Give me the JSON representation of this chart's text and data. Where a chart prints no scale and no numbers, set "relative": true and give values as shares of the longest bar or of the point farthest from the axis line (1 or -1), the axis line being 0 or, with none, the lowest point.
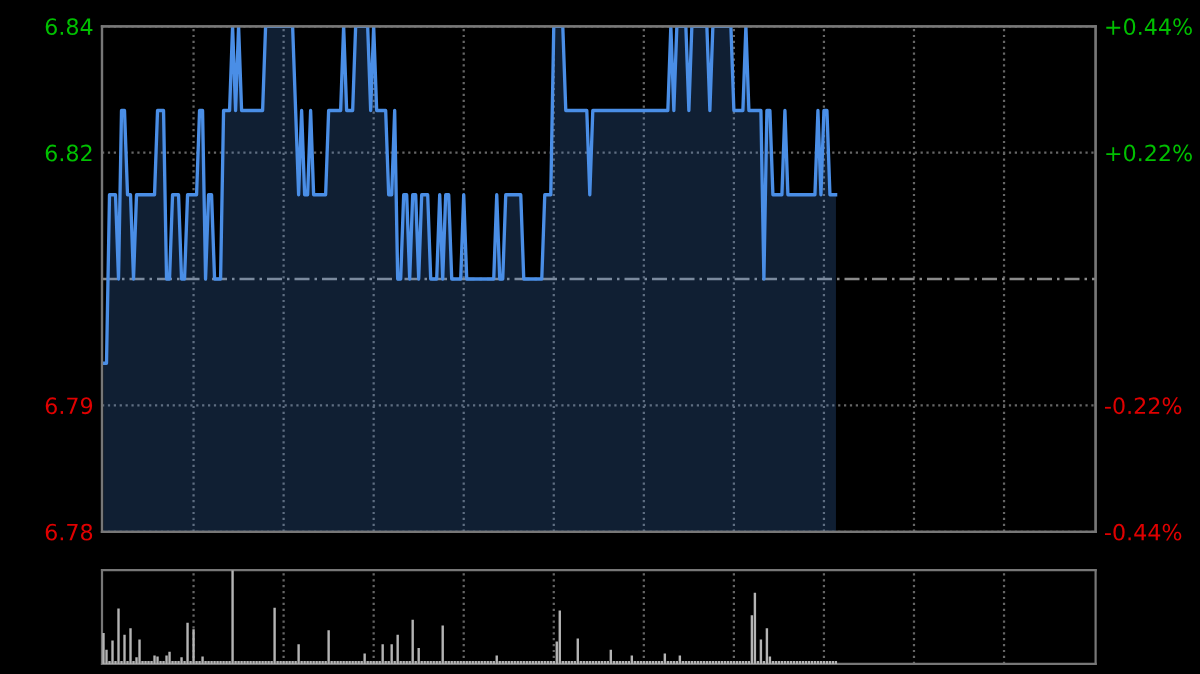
{
  "chart_data": [
    {
      "type": "area",
      "categories": [
        null,
        null,
        null,
        null,
        null,
        null,
        null,
        null,
        null,
        null,
        null,
        null,
        null,
        null,
        null,
        null,
        null,
        null,
        null,
        null,
        null,
        null,
        null,
        null,
        null,
        null,
        null,
        null,
        null,
        null,
        null,
        null,
        null,
        null,
        null,
        null,
        null,
        null,
        null,
        null,
        null,
        null,
        null,
        null,
        null,
        null,
        null,
        null,
        null,
        null,
        null,
        null,
        null,
        null,
        null,
        null,
        null,
        null,
        null,
        null,
        null,
        null,
        null,
        null,
        null,
        null,
        null,
        null,
        null,
        null,
        null,
        null,
        null,
        null,
        null,
        null,
        null,
        null,
        null,
        null,
        null,
        null,
        null,
        null,
        null,
        null,
        null,
        null,
        null,
        null,
        null,
        null,
        null,
        null,
        null,
        null,
        null,
        null,
        null,
        null,
        null,
        null,
        null,
        null,
        null,
        null,
        null,
        null,
        null,
        null,
        null,
        null,
        null,
        null,
        null,
        null,
        null,
        null,
        null,
        null,
        null,
        null,
        null,
        null,
        null,
        null,
        null,
        null,
        null,
        null,
        null,
        null,
        null,
        null,
        null,
        null,
        null,
        null,
        null,
        null,
        null,
        null,
        null,
        null,
        null,
        null,
        null,
        null,
        null,
        null,
        null,
        null,
        null,
        null,
        null,
        null,
        null,
        null,
        null,
        null,
        null,
        null,
        null,
        null,
        null,
        null,
        null,
        null,
        null,
        null,
        null,
        null,
        null,
        null,
        null,
        null,
        null,
        null,
        null,
        null,
        null,
        null,
        null,
        null,
        null,
        null,
        null,
        null,
        null,
        null,
        null,
        null,
        null,
        null,
        null,
        null,
        null,
        null,
        null,
        null,
        null,
        null,
        null,
        null,
        null,
        null,
        null,
        null,
        null,
        null,
        null,
        null,
        null,
        null,
        null,
        null,
        null,
        null,
        null,
        null,
        null,
        null,
        null,
        null,
        null,
        null,
        null,
        null,
        null,
        null,
        null,
        null,
        null,
        null,
        null,
        null,
        null,
        null,
        null,
        null,
        null,
        null,
        null,
        null,
        null
      ],
      "series": [
        {
          "color": "#4a8ee6",
          "values": [
            6.8,
            6.8,
            6.82,
            6.82,
            6.82,
            6.81,
            6.83,
            6.83,
            6.82,
            6.82,
            6.81,
            6.82,
            6.82,
            6.82,
            6.82,
            6.82,
            6.82,
            6.82,
            6.83,
            6.83,
            6.83,
            6.81,
            6.81,
            6.82,
            6.82,
            6.82,
            6.81,
            6.81,
            6.82,
            6.82,
            6.82,
            6.82,
            6.83,
            6.83,
            6.81,
            6.82,
            6.82,
            6.81,
            6.81,
            6.81,
            6.83,
            6.83,
            6.83,
            6.84,
            6.83,
            6.84,
            6.83,
            6.83,
            6.83,
            6.83,
            6.83,
            6.83,
            6.83,
            6.83,
            6.84,
            6.84,
            6.84,
            6.84,
            6.84,
            6.84,
            6.84,
            6.84,
            6.84,
            6.84,
            6.83,
            6.82,
            6.83,
            6.82,
            6.82,
            6.83,
            6.82,
            6.82,
            6.82,
            6.82,
            6.82,
            6.83,
            6.83,
            6.83,
            6.83,
            6.83,
            6.84,
            6.83,
            6.83,
            6.83,
            6.84,
            6.84,
            6.84,
            6.84,
            6.84,
            6.83,
            6.84,
            6.83,
            6.83,
            6.83,
            6.83,
            6.82,
            6.82,
            6.83,
            6.81,
            6.81,
            6.82,
            6.82,
            6.81,
            6.82,
            6.82,
            6.81,
            6.82,
            6.82,
            6.82,
            6.81,
            6.81,
            6.81,
            6.82,
            6.81,
            6.82,
            6.82,
            6.81,
            6.81,
            6.81,
            6.81,
            6.82,
            6.81,
            6.81,
            6.81,
            6.81,
            6.81,
            6.81,
            6.81,
            6.81,
            6.81,
            6.81,
            6.82,
            6.81,
            6.81,
            6.82,
            6.82,
            6.82,
            6.82,
            6.82,
            6.82,
            6.81,
            6.81,
            6.81,
            6.81,
            6.81,
            6.81,
            6.81,
            6.82,
            6.82,
            6.82,
            6.84,
            6.84,
            6.84,
            6.84,
            6.83,
            6.83,
            6.83,
            6.83,
            6.83,
            6.83,
            6.83,
            6.83,
            6.82,
            6.83,
            6.83,
            6.83,
            6.83,
            6.83,
            6.83,
            6.83,
            6.83,
            6.83,
            6.83,
            6.83,
            6.83,
            6.83,
            6.83,
            6.83,
            6.83,
            6.83,
            6.83,
            6.83,
            6.83,
            6.83,
            6.83,
            6.83,
            6.83,
            6.83,
            6.83,
            6.84,
            6.83,
            6.84,
            6.84,
            6.84,
            6.84,
            6.83,
            6.84,
            6.84,
            6.84,
            6.84,
            6.84,
            6.84,
            6.83,
            6.84,
            6.84,
            6.84,
            6.84,
            6.84,
            6.84,
            6.84,
            6.83,
            6.83,
            6.83,
            6.83,
            6.84,
            6.83,
            6.83,
            6.83,
            6.83,
            6.83,
            6.81,
            6.83,
            6.83,
            6.82,
            6.82,
            6.82,
            6.82,
            6.83,
            6.82,
            6.82,
            6.82,
            6.82,
            6.82,
            6.82,
            6.82,
            6.82,
            6.82,
            6.82,
            6.83,
            6.82,
            6.83,
            6.83,
            6.82,
            6.82,
            6.82
          ]
        }
      ],
      "ylim": [
        6.78,
        6.84
      ],
      "yticks": [
        6.84,
        {
          "value": 6.825,
          "label": "6.82"
        },
        {
          "value": 6.795,
          "label": "6.79"
        },
        6.78
      ],
      "y2lim": [
        -0.44,
        0.44
      ],
      "y2ticks": [
        {
          "value": 0.44,
          "label": "+0.44%"
        },
        {
          "value": 0.22,
          "label": "+0.22%"
        },
        {
          "value": -0.22,
          "label": "-0.22%"
        },
        {
          "value": -0.44,
          "label": "-0.44%"
        }
      ],
      "ref_lines": [
        {
          "axis": "y",
          "value": 6.81,
          "line_style": "dashed",
          "color": "#8a8a8a"
        }
      ],
      "grid": true,
      "tick_labels": "y"
    },
    {
      "type": "bar",
      "relative": true,
      "categories": [
        null,
        null,
        null,
        null,
        null,
        null,
        null,
        null,
        null,
        null,
        null,
        null,
        null,
        null,
        null,
        null,
        null,
        null,
        null,
        null,
        null,
        null,
        null,
        null,
        null,
        null,
        null,
        null,
        null,
        null,
        null,
        null,
        null,
        null,
        null,
        null,
        null,
        null,
        null,
        null,
        null,
        null,
        null,
        null,
        null,
        null,
        null,
        null,
        null,
        null,
        null,
        null,
        null,
        null,
        null,
        null,
        null,
        null,
        null,
        null,
        null,
        null,
        null,
        null,
        null,
        null,
        null,
        null,
        null,
        null,
        null,
        null,
        null,
        null,
        null,
        null,
        null,
        null,
        null,
        null,
        null,
        null,
        null,
        null,
        null,
        null,
        null,
        null,
        null,
        null,
        null,
        null,
        null,
        null,
        null,
        null,
        null,
        null,
        null,
        null,
        null,
        null,
        null,
        null,
        null,
        null,
        null,
        null,
        null,
        null,
        null,
        null,
        null,
        null,
        null,
        null,
        null,
        null,
        null,
        null,
        null,
        null,
        null,
        null,
        null,
        null,
        null,
        null,
        null,
        null,
        null,
        null,
        null,
        null,
        null,
        null,
        null,
        null,
        null,
        null,
        null,
        null,
        null,
        null,
        null,
        null,
        null,
        null,
        null,
        null,
        null,
        null,
        null,
        null,
        null,
        null,
        null,
        null,
        null,
        null,
        null,
        null,
        null,
        null,
        null,
        null,
        null,
        null,
        null,
        null,
        null,
        null,
        null,
        null,
        null,
        null,
        null,
        null,
        null,
        null,
        null,
        null,
        null,
        null,
        null,
        null,
        null,
        null,
        null,
        null,
        null,
        null,
        null,
        null,
        null,
        null,
        null,
        null,
        null,
        null,
        null,
        null,
        null,
        null,
        null,
        null,
        null,
        null,
        null,
        null,
        null,
        null,
        null,
        null,
        null,
        null,
        null,
        null,
        null,
        null,
        null,
        null,
        null,
        null,
        null,
        null,
        null,
        null,
        null,
        null,
        null,
        null,
        null,
        null,
        null,
        null,
        null,
        null,
        null,
        null,
        null,
        null,
        null,
        null,
        null
      ],
      "series": [
        {
          "color": "#b4b4b4",
          "values": [
            0.33,
            0.15,
            0.03,
            0.25,
            0.03,
            0.59,
            0.03,
            0.31,
            0.03,
            0.38,
            0.03,
            0.07,
            0.26,
            0.03,
            0.03,
            0.03,
            0.03,
            0.09,
            0.08,
            0.03,
            0.03,
            0.09,
            0.13,
            0.03,
            0.03,
            0.03,
            0.07,
            0.03,
            0.44,
            0.03,
            0.37,
            0.03,
            0.03,
            0.08,
            0.03,
            0.03,
            0.03,
            0.03,
            0.03,
            0.03,
            0.03,
            0.03,
            0.03,
            1,
            0.03,
            0.03,
            0.03,
            0.03,
            0.03,
            0.03,
            0.03,
            0.03,
            0.03,
            0.03,
            0.03,
            0.03,
            0.03,
            0.6,
            0.03,
            0.03,
            0.03,
            0.03,
            0.03,
            0.03,
            0.03,
            0.21,
            0.03,
            0.03,
            0.03,
            0.03,
            0.03,
            0.03,
            0.03,
            0.03,
            0.03,
            0.36,
            0.03,
            0.03,
            0.03,
            0.03,
            0.03,
            0.03,
            0.03,
            0.03,
            0.03,
            0.03,
            0.03,
            0.11,
            0.03,
            0.03,
            0.03,
            0.03,
            0.03,
            0.21,
            0.03,
            0.03,
            0.21,
            0.03,
            0.31,
            0.03,
            0.03,
            0.03,
            0.03,
            0.47,
            0.03,
            0.17,
            0.03,
            0.03,
            0.03,
            0.03,
            0.03,
            0.03,
            0.03,
            0.41,
            0.03,
            0.03,
            0.03,
            0.03,
            0.03,
            0.03,
            0.03,
            0.03,
            0.03,
            0.03,
            0.03,
            0.03,
            0.03,
            0.03,
            0.03,
            0.03,
            0.03,
            0.09,
            0.03,
            0.03,
            0.03,
            0.03,
            0.03,
            0.03,
            0.03,
            0.03,
            0.03,
            0.03,
            0.03,
            0.03,
            0.03,
            0.03,
            0.03,
            0.03,
            0.03,
            0.03,
            0.03,
            0.24,
            0.57,
            0.03,
            0.03,
            0.03,
            0.03,
            0.03,
            0.27,
            0.03,
            0.03,
            0.03,
            0.03,
            0.03,
            0.03,
            0.03,
            0.03,
            0.03,
            0.03,
            0.15,
            0.03,
            0.03,
            0.03,
            0.03,
            0.03,
            0.03,
            0.09,
            0.03,
            0.03,
            0.03,
            0.03,
            0.03,
            0.03,
            0.03,
            0.03,
            0.03,
            0.03,
            0.11,
            0.03,
            0.03,
            0.03,
            0.03,
            0.09,
            0.03,
            0.03,
            0.03,
            0.03,
            0.03,
            0.03,
            0.03,
            0.03,
            0.03,
            0.03,
            0.03,
            0.03,
            0.03,
            0.03,
            0.03,
            0.03,
            0.03,
            0.03,
            0.03,
            0.03,
            0.03,
            0.03,
            0.03,
            0.52,
            0.76,
            0.03,
            0.26,
            0.03,
            0.38,
            0.08,
            0.03,
            0.03,
            0.03,
            0.03,
            0.03,
            0.03,
            0.03,
            0.03,
            0.03,
            0.03,
            0.03,
            0.03,
            0.03,
            0.03,
            0.03,
            0.03,
            0.03,
            0.03,
            0.03,
            0.03,
            0.03,
            0.03
          ]
        }
      ],
      "grid": true,
      "tick_labels": false
    }
  ]
}
